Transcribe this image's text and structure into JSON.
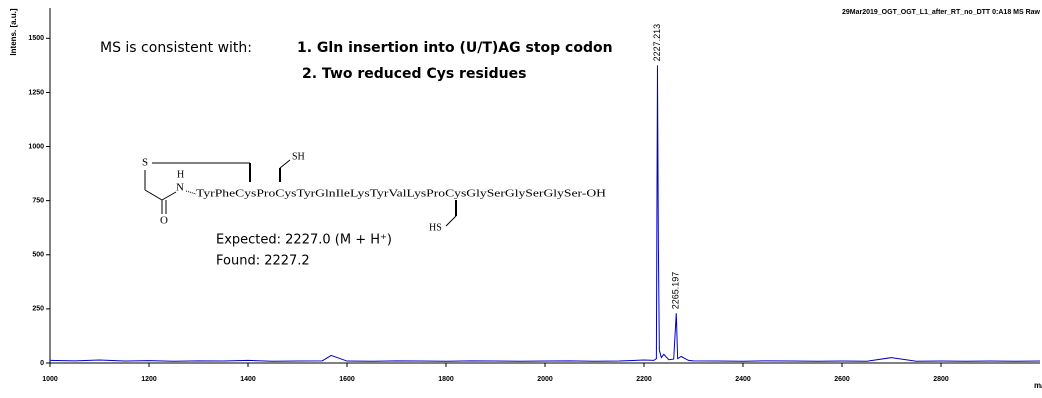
{
  "chart_data": {
    "type": "line",
    "title": "29Mar2019_OGT_OGT_L1_after_RT_no_DTT 0:A18 MS Raw",
    "y_label": "Intens. [a.u.]",
    "x_label": "m/z",
    "xlim": [
      1000,
      3000
    ],
    "ylim": [
      0,
      1640
    ],
    "xticks": [
      1000,
      1200,
      1400,
      1600,
      1800,
      2000,
      2200,
      2400,
      2600,
      2800
    ],
    "yticks": [
      0,
      250,
      500,
      750,
      1000,
      1250,
      1500
    ],
    "x": [
      1000,
      1050,
      1100,
      1150,
      1200,
      1250,
      1300,
      1350,
      1400,
      1450,
      1500,
      1550,
      1568,
      1600,
      1650,
      1700,
      1750,
      1800,
      1850,
      1900,
      1950,
      2000,
      2050,
      2100,
      2150,
      2200,
      2220,
      2225,
      2227.213,
      2229,
      2231,
      2235,
      2240,
      2250,
      2260,
      2265.197,
      2268,
      2275,
      2290,
      2300,
      2350,
      2400,
      2450,
      2500,
      2550,
      2600,
      2650,
      2700,
      2750,
      2800,
      2850,
      2900,
      2950,
      3000
    ],
    "series": [
      {
        "color": "#0000cc",
        "values": [
          12,
          10,
          14,
          9,
          11,
          8,
          10,
          9,
          12,
          8,
          9,
          10,
          35,
          9,
          8,
          10,
          9,
          8,
          10,
          9,
          8,
          9,
          10,
          8,
          9,
          14,
          12,
          20,
          1375,
          550,
          60,
          25,
          40,
          15,
          18,
          230,
          20,
          30,
          12,
          10,
          9,
          8,
          10,
          9,
          8,
          9,
          8,
          25,
          8,
          9,
          8,
          9,
          8,
          9
        ]
      }
    ],
    "peaks": [
      2227.213,
      2265.197
    ],
    "peak_heights": [
      1375,
      230
    ],
    "annotations": {
      "heading": "MS is consistent with:",
      "point1": "1. Gln insertion into (U/T)AG stop codon",
      "point2": "2. Two reduced Cys residues",
      "expected": "Expected: 2227.0 (M + H⁺)",
      "found": "Found: 2227.2"
    },
    "structure": {
      "s": "S",
      "h": "H",
      "n": "N",
      "o": "O",
      "sh": "SH",
      "hs": "HS",
      "sequence": "TyrPheCysProCysTyrGlnIleLysTyrValLysProCysGlySerGlySerGlySer-OH"
    }
  }
}
